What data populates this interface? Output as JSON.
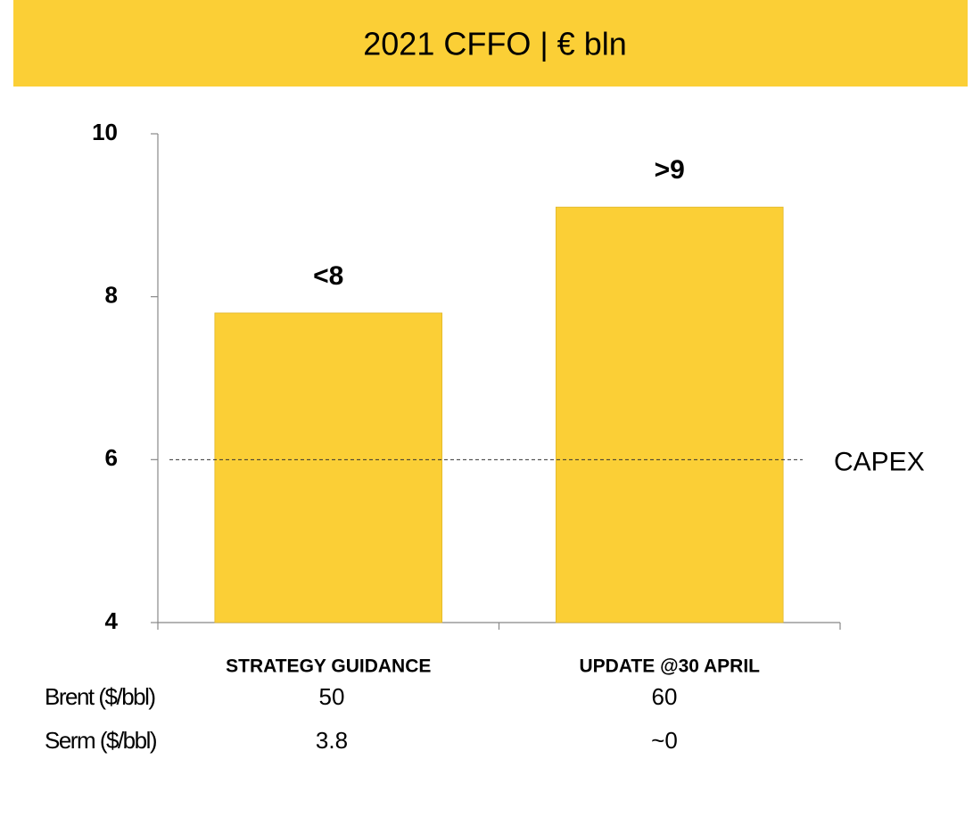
{
  "chart_data": {
    "type": "bar",
    "title": "2021 CFFO | € bln",
    "categories": [
      "STRATEGY GUIDANCE",
      "UPDATE @30 APRIL"
    ],
    "values": [
      7.8,
      9.1
    ],
    "value_labels": [
      "<8",
      ">9"
    ],
    "color": "#fbcf36",
    "ylim": [
      4,
      10
    ],
    "yticks": [
      4,
      6,
      8,
      10
    ],
    "grid": false,
    "reference_line": {
      "value": 6,
      "label": "CAPEX"
    },
    "footnote_table": {
      "rows": [
        [
          "Brent ($/bbl)",
          "50",
          "60"
        ],
        [
          "Serm ($/bbl)",
          "3.8",
          "~0"
        ]
      ]
    }
  }
}
